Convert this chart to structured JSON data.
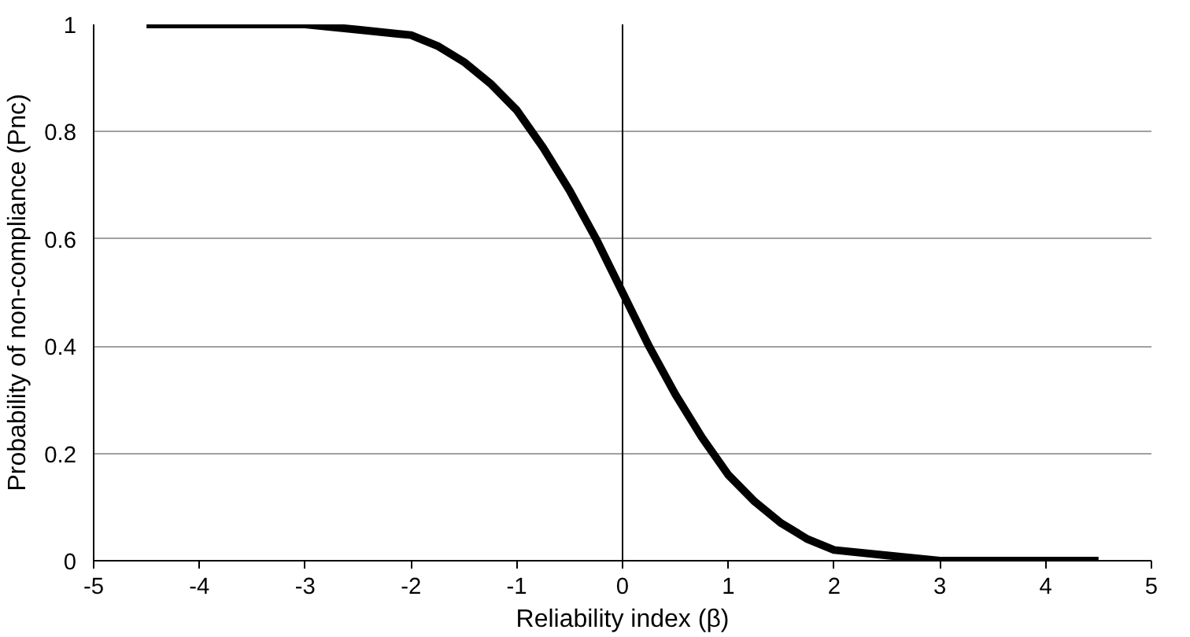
{
  "chart_data": {
    "type": "line",
    "xlabel": "Reliability index (β)",
    "ylabel": "Probability of non-compliance (Pnc)",
    "x": [
      -4.5,
      -4,
      -3.5,
      -3,
      -2.5,
      -2,
      -1.75,
      -1.5,
      -1.25,
      -1,
      -0.75,
      -0.5,
      -0.25,
      0,
      0.25,
      0.5,
      0.75,
      1,
      1.25,
      1.5,
      1.75,
      2,
      2.5,
      3,
      3.5,
      4,
      4.5
    ],
    "series": [
      {
        "color": "#000000",
        "values": [
          1,
          1,
          1,
          1,
          0.99,
          0.98,
          0.96,
          0.93,
          0.89,
          0.84,
          0.77,
          0.69,
          0.6,
          0.5,
          0.4,
          0.31,
          0.23,
          0.16,
          0.11,
          0.07,
          0.04,
          0.02,
          0.01,
          0,
          0,
          0,
          0
        ]
      }
    ],
    "xlim": [
      -5,
      5
    ],
    "ylim": [
      0,
      1
    ],
    "xticks": [
      -5,
      -4,
      -3,
      -2,
      -1,
      0,
      1,
      2,
      3,
      4,
      5
    ],
    "yticks": [
      0,
      0.2,
      0.4,
      0.6,
      0.8,
      1
    ],
    "grid": "y",
    "marker": "none",
    "line_style": "solid",
    "ref_lines": [
      {
        "axis": "x",
        "value": 0,
        "color": "#000000"
      }
    ]
  }
}
